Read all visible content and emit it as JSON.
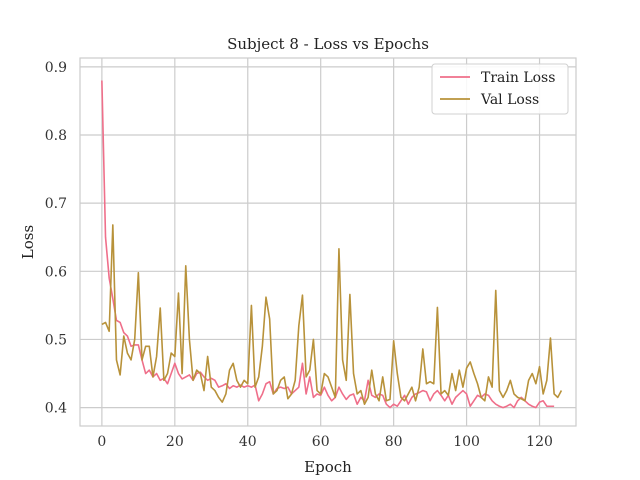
{
  "chart_data": {
    "type": "line",
    "title": "Subject 8 - Loss vs Epochs",
    "xlabel": "Epoch",
    "ylabel": "Loss",
    "xlim": [
      -6,
      130
    ],
    "ylim": [
      0.373,
      0.913
    ],
    "xticks": [
      0,
      20,
      40,
      60,
      80,
      100,
      120
    ],
    "yticks": [
      0.4,
      0.5,
      0.6,
      0.7,
      0.8,
      0.9
    ],
    "xtick_labels": [
      "0",
      "20",
      "40",
      "60",
      "80",
      "100",
      "120"
    ],
    "ytick_labels": [
      "0.4",
      "0.5",
      "0.6",
      "0.7",
      "0.8",
      "0.9"
    ],
    "grid": true,
    "legend_position": "top-right",
    "series": [
      {
        "name": "Train Loss",
        "color": "#ef6f8a",
        "values": [
          0.88,
          0.65,
          0.59,
          0.56,
          0.528,
          0.525,
          0.51,
          0.505,
          0.49,
          0.492,
          0.492,
          0.47,
          0.45,
          0.455,
          0.445,
          0.45,
          0.44,
          0.443,
          0.435,
          0.45,
          0.465,
          0.45,
          0.442,
          0.445,
          0.448,
          0.44,
          0.45,
          0.452,
          0.445,
          0.44,
          0.443,
          0.44,
          0.43,
          0.432,
          0.435,
          0.428,
          0.432,
          0.43,
          0.433,
          0.43,
          0.432,
          0.43,
          0.433,
          0.41,
          0.42,
          0.435,
          0.438,
          0.42,
          0.428,
          0.43,
          0.428,
          0.43,
          0.42,
          0.425,
          0.43,
          0.465,
          0.42,
          0.445,
          0.415,
          0.42,
          0.418,
          0.43,
          0.418,
          0.41,
          0.415,
          0.43,
          0.42,
          0.412,
          0.418,
          0.42,
          0.405,
          0.415,
          0.41,
          0.44,
          0.418,
          0.415,
          0.42,
          0.418,
          0.405,
          0.4,
          0.405,
          0.402,
          0.41,
          0.418,
          0.405,
          0.415,
          0.42,
          0.422,
          0.425,
          0.423,
          0.41,
          0.42,
          0.425,
          0.418,
          0.41,
          0.418,
          0.405,
          0.415,
          0.42,
          0.425,
          0.42,
          0.402,
          0.41,
          0.418,
          0.415,
          0.42,
          0.418,
          0.41,
          0.405,
          0.402,
          0.4,
          0.402,
          0.405,
          0.4,
          0.41,
          0.415,
          0.41,
          0.405,
          0.402,
          0.4,
          0.408,
          0.41,
          0.402,
          0.402,
          0.402
        ]
      },
      {
        "name": "Val Loss",
        "color": "#b8923a",
        "values": [
          0.522,
          0.525,
          0.512,
          0.668,
          0.47,
          0.448,
          0.505,
          0.48,
          0.47,
          0.5,
          0.598,
          0.47,
          0.49,
          0.49,
          0.445,
          0.475,
          0.546,
          0.44,
          0.45,
          0.48,
          0.475,
          0.568,
          0.45,
          0.608,
          0.5,
          0.44,
          0.455,
          0.45,
          0.425,
          0.475,
          0.43,
          0.425,
          0.415,
          0.408,
          0.42,
          0.455,
          0.465,
          0.44,
          0.43,
          0.44,
          0.435,
          0.55,
          0.43,
          0.445,
          0.49,
          0.562,
          0.53,
          0.42,
          0.425,
          0.44,
          0.445,
          0.413,
          0.42,
          0.44,
          0.52,
          0.565,
          0.445,
          0.455,
          0.5,
          0.425,
          0.42,
          0.45,
          0.445,
          0.43,
          0.415,
          0.633,
          0.47,
          0.44,
          0.566,
          0.45,
          0.42,
          0.425,
          0.405,
          0.415,
          0.455,
          0.42,
          0.41,
          0.445,
          0.41,
          0.412,
          0.498,
          0.45,
          0.415,
          0.41,
          0.42,
          0.43,
          0.41,
          0.43,
          0.486,
          0.435,
          0.438,
          0.435,
          0.547,
          0.42,
          0.425,
          0.418,
          0.45,
          0.425,
          0.455,
          0.43,
          0.458,
          0.467,
          0.45,
          0.435,
          0.415,
          0.41,
          0.445,
          0.43,
          0.572,
          0.425,
          0.415,
          0.425,
          0.44,
          0.42,
          0.415,
          0.413,
          0.41,
          0.44,
          0.45,
          0.435,
          0.46,
          0.42,
          0.44,
          0.502,
          0.42,
          0.415,
          0.425
        ]
      }
    ]
  }
}
